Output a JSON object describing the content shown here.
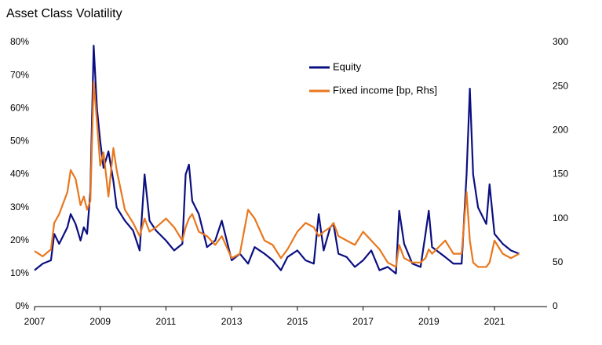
{
  "chart_data": {
    "type": "line",
    "title": "Asset Class Volatility",
    "x": [
      2007.0,
      2007.25,
      2007.5,
      2007.6,
      2007.75,
      2008.0,
      2008.1,
      2008.25,
      2008.4,
      2008.5,
      2008.6,
      2008.7,
      2008.8,
      2008.9,
      2009.0,
      2009.1,
      2009.25,
      2009.4,
      2009.5,
      2009.75,
      2010.0,
      2010.2,
      2010.35,
      2010.5,
      2010.7,
      2011.0,
      2011.25,
      2011.5,
      2011.6,
      2011.7,
      2011.8,
      2012.0,
      2012.25,
      2012.5,
      2012.7,
      2013.0,
      2013.25,
      2013.5,
      2013.7,
      2014.0,
      2014.25,
      2014.5,
      2014.7,
      2015.0,
      2015.25,
      2015.5,
      2015.65,
      2015.8,
      2016.0,
      2016.1,
      2016.25,
      2016.5,
      2016.75,
      2017.0,
      2017.25,
      2017.5,
      2017.75,
      2018.0,
      2018.1,
      2018.25,
      2018.5,
      2018.75,
      2018.9,
      2019.0,
      2019.1,
      2019.5,
      2019.75,
      2020.0,
      2020.15,
      2020.25,
      2020.35,
      2020.5,
      2020.75,
      2020.85,
      2021.0,
      2021.25,
      2021.5,
      2021.75
    ],
    "series": [
      {
        "name": "Equity",
        "color": "#0b0f80",
        "axis": "y",
        "values": [
          11,
          13,
          14,
          22,
          19,
          24,
          28,
          25,
          20,
          24,
          22,
          35,
          79,
          60,
          50,
          42,
          47,
          38,
          30,
          26,
          23,
          17,
          40,
          26,
          23,
          20,
          17,
          19,
          40,
          43,
          32,
          28,
          18,
          20,
          26,
          14,
          16,
          13,
          18,
          16,
          14,
          11,
          15,
          17,
          14,
          13,
          28,
          17,
          24,
          25,
          16,
          15,
          12,
          14,
          17,
          11,
          12,
          10,
          29,
          19,
          13,
          12,
          22,
          29,
          18,
          15,
          13,
          13,
          40,
          66,
          40,
          30,
          25,
          37,
          22,
          19,
          17,
          16
        ]
      },
      {
        "name": "Fixed income [bp, Rhs]",
        "color": "#e8771e",
        "axis": "y2",
        "values": [
          63,
          57,
          65,
          95,
          105,
          130,
          155,
          145,
          115,
          125,
          110,
          120,
          255,
          210,
          160,
          175,
          125,
          180,
          155,
          110,
          95,
          80,
          100,
          85,
          90,
          100,
          90,
          75,
          90,
          100,
          105,
          85,
          80,
          70,
          80,
          55,
          60,
          110,
          100,
          75,
          70,
          55,
          65,
          85,
          95,
          90,
          80,
          85,
          90,
          95,
          80,
          75,
          70,
          85,
          75,
          65,
          50,
          45,
          70,
          55,
          50,
          50,
          55,
          65,
          60,
          75,
          60,
          60,
          130,
          75,
          50,
          45,
          45,
          50,
          75,
          60,
          55,
          60
        ]
      }
    ],
    "xlim": [
      2007,
      2022.6
    ],
    "xticks": [
      2007,
      2009,
      2011,
      2013,
      2015,
      2017,
      2019,
      2021
    ],
    "ylim": [
      0,
      80
    ],
    "yticks": [
      {
        "value": 0,
        "label": "0%"
      },
      {
        "value": 10,
        "label": "10%"
      },
      {
        "value": 20,
        "label": "20%"
      },
      {
        "value": 30,
        "label": "30%"
      },
      {
        "value": 40,
        "label": "40%"
      },
      {
        "value": 50,
        "label": "50%"
      },
      {
        "value": 60,
        "label": "60%"
      },
      {
        "value": 70,
        "label": "70%"
      },
      {
        "value": 80,
        "label": "80%"
      }
    ],
    "y2lim": [
      0,
      300
    ],
    "y2ticks": [
      0,
      50,
      100,
      150,
      200,
      250,
      300
    ]
  }
}
